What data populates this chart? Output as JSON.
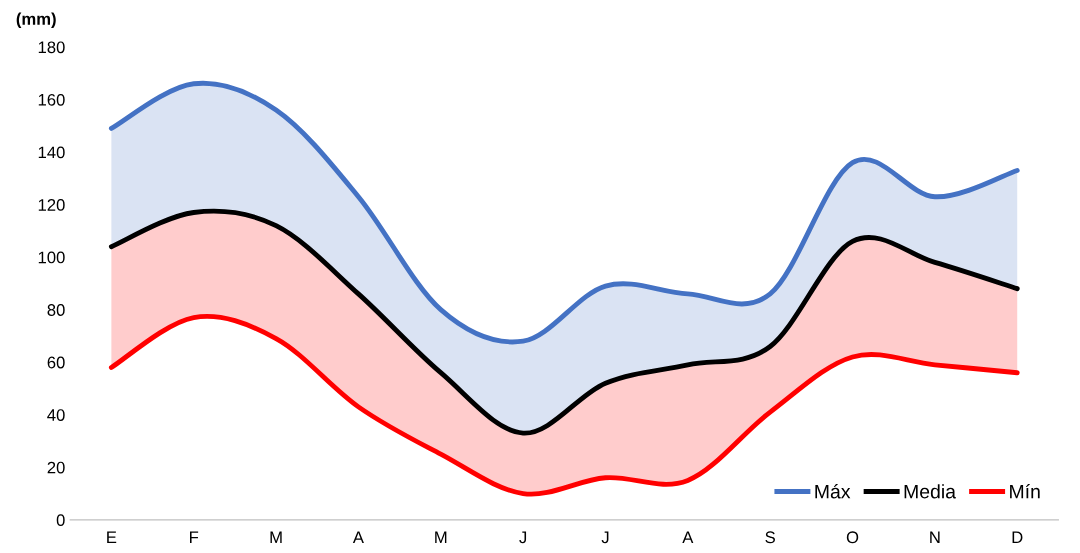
{
  "chart_data": {
    "type": "line",
    "ylabel": "(mm)",
    "categories": [
      "E",
      "F",
      "M",
      "A",
      "M",
      "J",
      "J",
      "A",
      "S",
      "O",
      "N",
      "D"
    ],
    "series": [
      {
        "name": "Máx",
        "color": "#4472c4",
        "values": [
          149,
          166,
          156,
          123,
          80,
          68,
          89,
          86,
          86,
          136,
          123,
          133
        ],
        "lower": [
          104,
          117,
          112,
          86,
          56,
          33,
          52,
          59,
          66,
          106,
          98,
          88
        ],
        "upper": [
          149,
          166,
          156,
          123,
          80,
          68,
          89,
          86,
          86,
          136,
          123,
          133
        ]
      },
      {
        "name": "Media",
        "color": "#000000",
        "values": [
          104,
          117,
          112,
          86,
          56,
          33,
          52,
          59,
          66,
          106,
          98,
          88
        ]
      },
      {
        "name": "Mín",
        "color": "#ff0000",
        "values": [
          58,
          77,
          69,
          43,
          25,
          10,
          16,
          15,
          41,
          62,
          59,
          56
        ],
        "lower": [
          58,
          77,
          69,
          43,
          25,
          10,
          16,
          15,
          41,
          62,
          59,
          56
        ],
        "upper": [
          104,
          117,
          112,
          86,
          56,
          33,
          52,
          59,
          66,
          106,
          98,
          88
        ]
      }
    ],
    "ylim": [
      0,
      180
    ],
    "yticks": [
      0,
      20,
      40,
      60,
      80,
      100,
      120,
      140,
      160,
      180
    ],
    "grid": false,
    "legend": "bottom right",
    "line_style": "solid",
    "marker": "none"
  }
}
